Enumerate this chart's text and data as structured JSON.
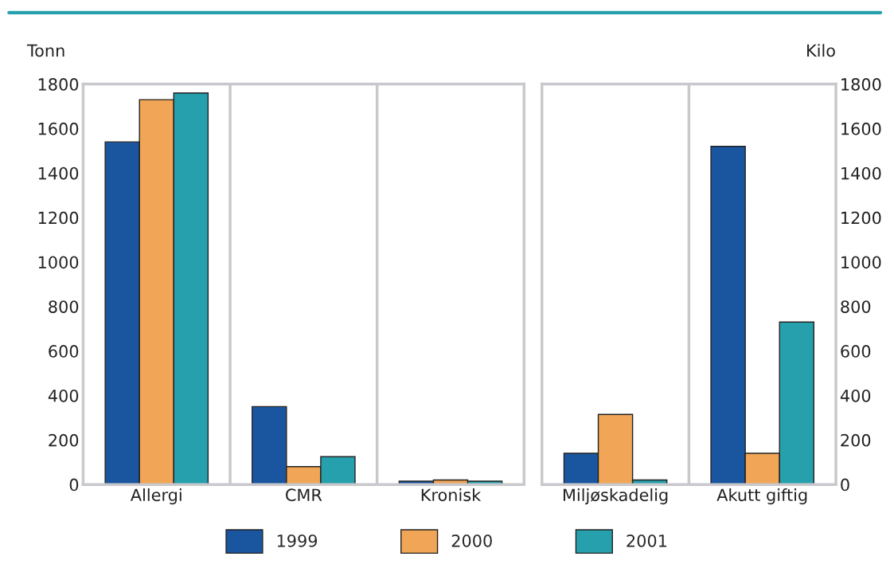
{
  "chart_data": [
    {
      "type": "bar",
      "ylabel": "Tonn",
      "categories": [
        "Allergi",
        "CMR",
        "Kronisk"
      ],
      "ylim": [
        0,
        1800
      ],
      "yticks": [
        0,
        200,
        400,
        600,
        800,
        1000,
        1200,
        1400,
        1600,
        1800
      ],
      "grid": "x",
      "legend": "bottom",
      "series": [
        {
          "name": "1999",
          "color": "#1a56a0",
          "values": [
            1540,
            350,
            15
          ]
        },
        {
          "name": "2000",
          "color": "#f0a656",
          "values": [
            1730,
            80,
            20
          ]
        },
        {
          "name": "2001",
          "color": "#27a0ad",
          "values": [
            1760,
            125,
            15
          ]
        }
      ]
    },
    {
      "type": "bar",
      "y2label": "Kilo",
      "categories": [
        "Miljøskadelig",
        "Akutt giftig"
      ],
      "y2lim": [
        0,
        1800
      ],
      "y2ticks": [
        0,
        200,
        400,
        600,
        800,
        1000,
        1200,
        1400,
        1600,
        1800
      ],
      "grid": "x",
      "series": [
        {
          "name": "1999",
          "color": "#1a56a0",
          "values": [
            140,
            1520
          ],
          "axis": "y2"
        },
        {
          "name": "2000",
          "color": "#f0a656",
          "values": [
            315,
            140
          ],
          "axis": "y2"
        },
        {
          "name": "2001",
          "color": "#27a0ad",
          "values": [
            20,
            730
          ],
          "axis": "y2"
        }
      ]
    }
  ]
}
